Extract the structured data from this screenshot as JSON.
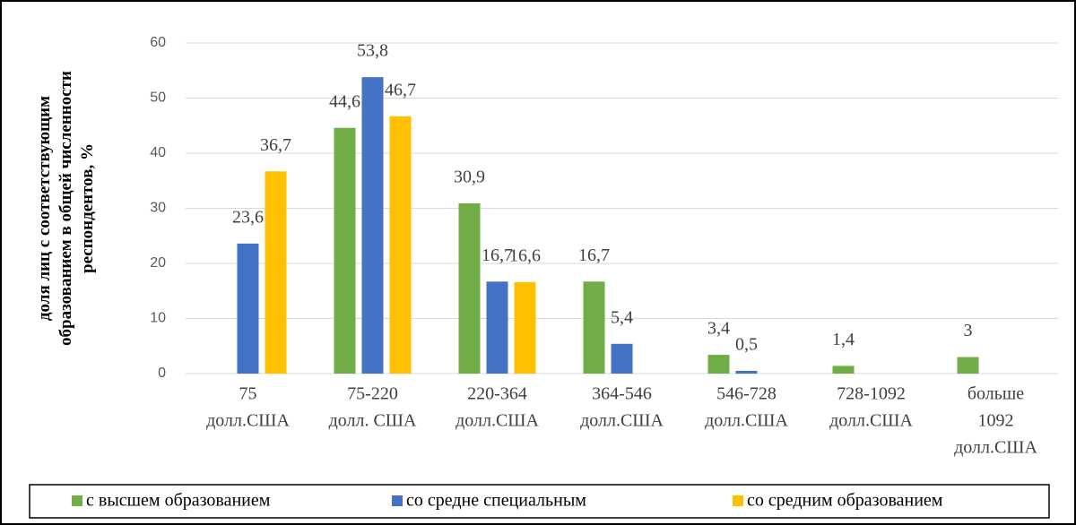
{
  "chart_data": {
    "type": "bar",
    "categories": [
      [
        "75",
        "долл.США"
      ],
      [
        "75-220",
        "долл. США"
      ],
      [
        "220-364",
        "долл.США"
      ],
      [
        "364-546",
        "долл.США"
      ],
      [
        "546-728",
        "долл.США"
      ],
      [
        "728-1092",
        "долл.США"
      ],
      [
        "больше",
        "1092",
        "долл.США"
      ]
    ],
    "y_label": [
      "доля лиц с соответствующим",
      "образованием в общей численности",
      "респондентов, %"
    ],
    "series": [
      {
        "name": "с высшем образованием",
        "color": "#70ad47",
        "values": [
          null,
          44.6,
          30.9,
          16.7,
          3.4,
          1.4,
          3
        ],
        "value_labels": [
          null,
          "44,6",
          "30,9",
          "16,7",
          "3,4",
          "1,4",
          "3"
        ]
      },
      {
        "name": "со средне специальным",
        "color": "#4472c4",
        "values": [
          23.6,
          53.8,
          16.7,
          5.4,
          0.5,
          null,
          null
        ],
        "value_labels": [
          "23,6",
          "53,8",
          "16,7",
          "5,4",
          "0,5",
          null,
          null
        ]
      },
      {
        "name": "со средним образованием",
        "color": "#ffc000",
        "values": [
          36.7,
          46.7,
          16.6,
          null,
          null,
          null,
          null
        ],
        "value_labels": [
          "36,7",
          "46,7",
          "16,6",
          null,
          null,
          null,
          null
        ]
      }
    ],
    "ylim": [
      0,
      60
    ],
    "yticks": [
      0,
      10,
      20,
      30,
      40,
      50,
      60
    ],
    "grid": true,
    "legend": "bottom"
  }
}
